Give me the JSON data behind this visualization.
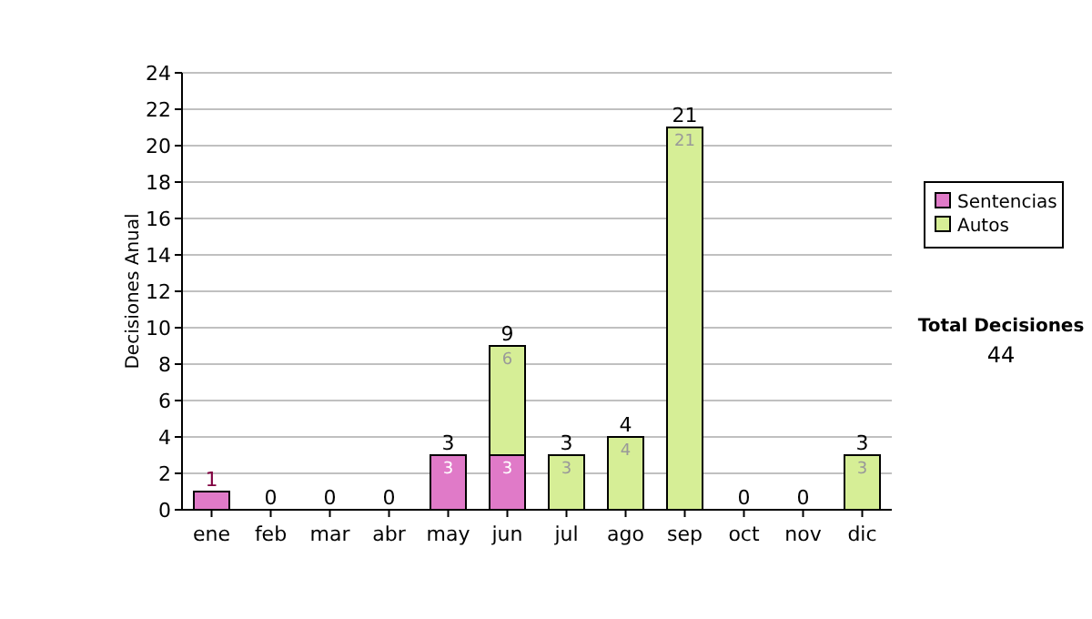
{
  "chart_data": {
    "type": "bar",
    "stacked": true,
    "ylabel": "Decisiones Anual",
    "categories": [
      "ene",
      "feb",
      "mar",
      "abr",
      "may",
      "jun",
      "jul",
      "ago",
      "sep",
      "oct",
      "nov",
      "dic"
    ],
    "series": [
      {
        "name": "Sentencias",
        "color": "#e07ac8",
        "values": [
          1,
          0,
          0,
          0,
          3,
          3,
          0,
          0,
          0,
          0,
          0,
          0
        ],
        "value_labels": [
          null,
          null,
          null,
          null,
          "3",
          "3",
          null,
          null,
          null,
          null,
          null,
          null
        ]
      },
      {
        "name": "Autos",
        "color": "#d6ee96",
        "values": [
          0,
          0,
          0,
          0,
          0,
          6,
          3,
          4,
          21,
          0,
          0,
          3
        ],
        "value_labels": [
          null,
          null,
          null,
          null,
          null,
          "6",
          "3",
          "4",
          "21",
          null,
          null,
          "3"
        ]
      }
    ],
    "totals": [
      "1",
      "0",
      "0",
      "0",
      "3",
      "9",
      "3",
      "4",
      "21",
      "0",
      "0",
      "3"
    ],
    "ylim": [
      0,
      24
    ],
    "yticks": [
      0,
      2,
      4,
      6,
      8,
      10,
      12,
      14,
      16,
      18,
      20,
      22,
      24
    ],
    "grid": "y",
    "legend": "right",
    "annotations": [
      "Total Decisiones",
      "44"
    ]
  }
}
